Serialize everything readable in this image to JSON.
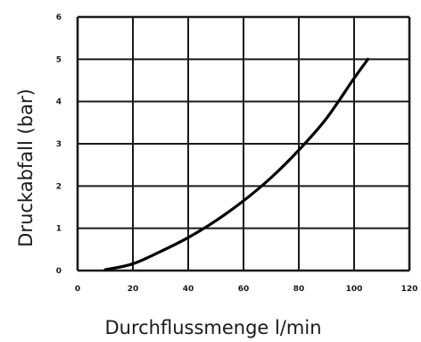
{
  "chart_data": {
    "type": "line",
    "xlabel": "Durchflussmenge l/min",
    "ylabel": "Druckabfall (bar)",
    "xlim": [
      0,
      120
    ],
    "ylim": [
      0,
      6
    ],
    "x_ticks": [
      "0",
      "20",
      "40",
      "60",
      "80",
      "100",
      "120"
    ],
    "y_ticks": [
      "0",
      "1",
      "2",
      "3",
      "4",
      "5",
      "6"
    ],
    "grid": true,
    "series": [
      {
        "x": [
          10,
          20,
          30,
          40,
          50,
          60,
          70,
          80,
          90,
          100,
          105
        ],
        "y": [
          0.02,
          0.16,
          0.45,
          0.78,
          1.18,
          1.65,
          2.2,
          2.85,
          3.6,
          4.55,
          5.0
        ]
      }
    ],
    "colors": {
      "line": "#000000",
      "grid": "#1a1a1a",
      "background": "#ffffff"
    }
  }
}
